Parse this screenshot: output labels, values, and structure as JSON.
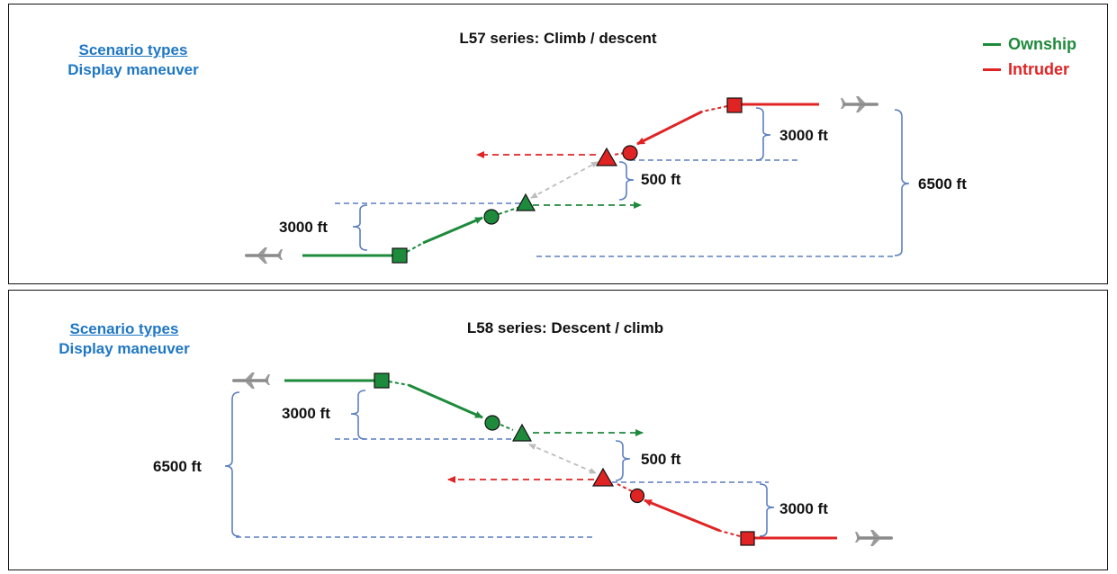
{
  "colors": {
    "ownship": "#1e8a3c",
    "intruder": "#e02424",
    "heading": "#1f77c4",
    "reference": "#5b7fbf",
    "range": "#bdbdbd"
  },
  "legend": {
    "ownship": "Ownship",
    "intruder": "Intruder"
  },
  "panels": [
    {
      "header": {
        "link": "Scenario types",
        "subtitle": "Display maneuver"
      },
      "title": "L57 series: Climb / descent",
      "labels": {
        "alt_change_left": "3000 ft",
        "alt_change_right": "3000 ft",
        "separation": "500 ft",
        "total": "6500 ft"
      }
    },
    {
      "header": {
        "link": "Scenario types",
        "subtitle": "Display maneuver"
      },
      "title": "L58 series: Descent / climb",
      "labels": {
        "alt_change_left": "3000 ft",
        "alt_change_right": "3000 ft",
        "separation": "500 ft",
        "total": "6500 ft"
      }
    }
  ],
  "icons": {
    "ownship_aircraft": "aircraft-icon",
    "intruder_aircraft": "aircraft-icon",
    "start_marker": "square",
    "mid_marker": "circle",
    "cpa_marker": "triangle"
  }
}
